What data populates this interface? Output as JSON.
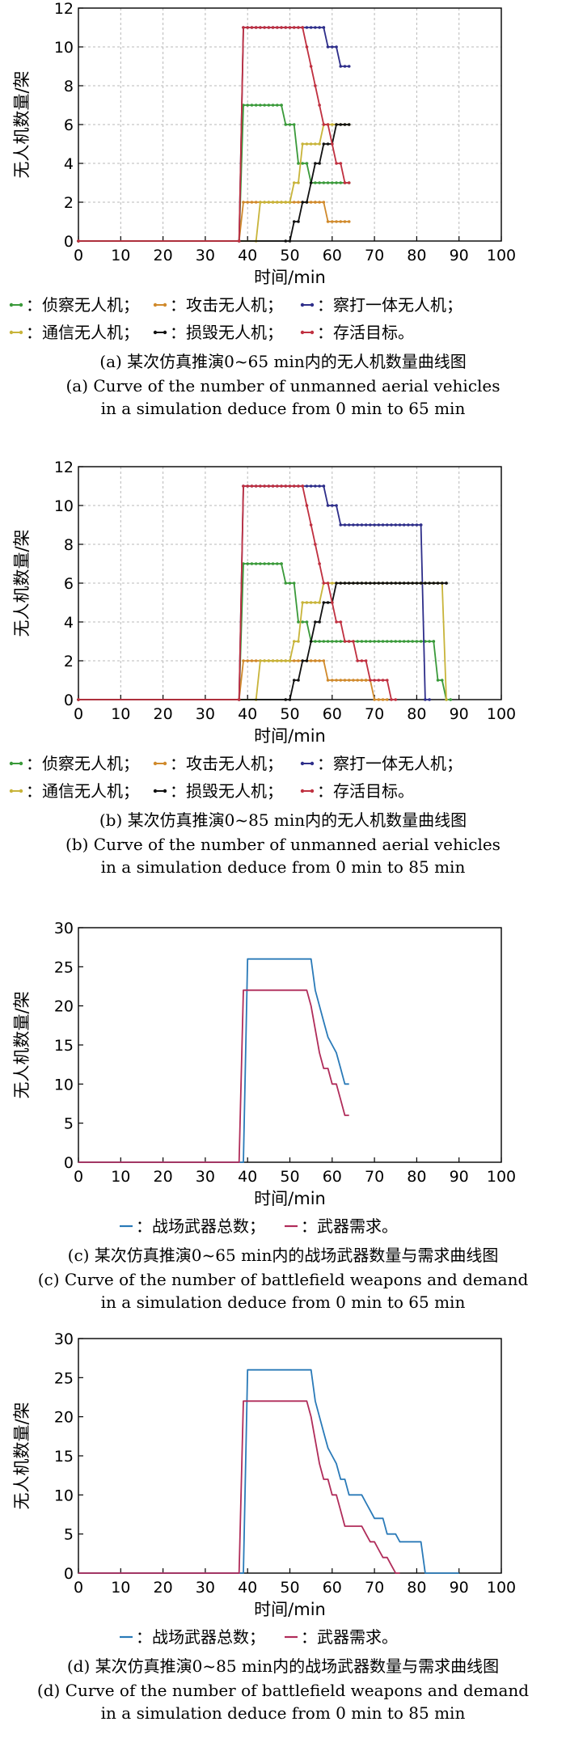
{
  "chart_data": [
    {
      "type": "line",
      "caption_zh": "(a) 某次仿真推演0~65 min内的无人机数量曲线图",
      "caption_en_1": "(a) Curve of the number of unmanned aerial vehicles",
      "caption_en_2": "in a simulation deduce from 0 min to 65 min",
      "xlabel": "时间/min",
      "ylabel": "无人机数量/架",
      "xlim": [
        0,
        100
      ],
      "ylim": [
        0,
        12
      ],
      "xticks": [
        "0",
        "10",
        "20",
        "30",
        "40",
        "50",
        "60",
        "70",
        "80",
        "90",
        "100"
      ],
      "yticks": [
        "0",
        "2",
        "4",
        "6",
        "8",
        "10",
        "12"
      ],
      "grid": true,
      "legend_position": "bottom",
      "legend": [
        "：侦察无人机；",
        "：攻击无人机；",
        "：察打一体无人机；",
        "：通信无人机；",
        "：损毁无人机；",
        "：存活目标。"
      ],
      "series": [
        {
          "color": "#3a9a3a",
          "x": [
            0,
            38,
            39,
            40,
            48,
            49,
            50,
            51,
            52,
            53,
            54,
            55,
            56,
            57,
            58,
            59,
            60,
            61,
            62,
            63,
            64
          ],
          "y": [
            0,
            0,
            7,
            7,
            7,
            6,
            6,
            6,
            4,
            4,
            4,
            3,
            3,
            3,
            3,
            3,
            3,
            3,
            3,
            3,
            3
          ]
        },
        {
          "color": "#d08a2c",
          "x": [
            0,
            38,
            39,
            40,
            56,
            57,
            58,
            59,
            60,
            61,
            62,
            63,
            64
          ],
          "y": [
            0,
            0,
            2,
            2,
            2,
            2,
            2,
            1,
            1,
            1,
            1,
            1,
            1
          ]
        },
        {
          "color": "#2e2e8a",
          "x": [
            0,
            38,
            39,
            40,
            58,
            59,
            60,
            61,
            62,
            63,
            64
          ],
          "y": [
            0,
            0,
            11,
            11,
            11,
            10,
            10,
            10,
            9,
            9,
            9
          ]
        },
        {
          "color": "#c8b43a",
          "x": [
            0,
            42,
            43,
            44,
            45,
            50,
            51,
            52,
            53,
            54,
            55,
            56,
            57,
            58,
            59,
            60,
            61,
            62,
            63,
            64
          ],
          "y": [
            0,
            0,
            2,
            2,
            2,
            2,
            3,
            3,
            5,
            5,
            5,
            5,
            5,
            6,
            6,
            6,
            6,
            6,
            6,
            6
          ]
        },
        {
          "color": "#111111",
          "x": [
            0,
            49,
            50,
            51,
            52,
            53,
            54,
            55,
            56,
            57,
            58,
            59,
            60,
            61,
            62,
            63,
            64
          ],
          "y": [
            0,
            0,
            0,
            1,
            1,
            2,
            2,
            3,
            4,
            4,
            5,
            5,
            5,
            6,
            6,
            6,
            6
          ]
        },
        {
          "color": "#c03040",
          "x": [
            0,
            38,
            39,
            40,
            53,
            54,
            55,
            56,
            57,
            58,
            59,
            60,
            61,
            62,
            63,
            64
          ],
          "y": [
            0,
            0,
            11,
            11,
            11,
            10,
            9,
            8,
            7,
            6,
            6,
            5,
            4,
            4,
            3,
            3
          ]
        }
      ]
    },
    {
      "type": "line",
      "caption_zh": "(b) 某次仿真推演0~85 min内的无人机数量曲线图",
      "caption_en_1": "(b) Curve of the number of unmanned aerial vehicles",
      "caption_en_2": "in a simulation deduce from 0 min to 85 min",
      "xlabel": "时间/min",
      "ylabel": "无人机数量/架",
      "xlim": [
        0,
        100
      ],
      "ylim": [
        0,
        12
      ],
      "xticks": [
        "0",
        "10",
        "20",
        "30",
        "40",
        "50",
        "60",
        "70",
        "80",
        "90",
        "100"
      ],
      "yticks": [
        "0",
        "2",
        "4",
        "6",
        "8",
        "10",
        "12"
      ],
      "grid": true,
      "legend_position": "bottom",
      "legend": [
        "：侦察无人机；",
        "：攻击无人机；",
        "：察打一体无人机；",
        "：通信无人机；",
        "：损毁无人机；",
        "：存活目标。"
      ],
      "series": [
        {
          "color": "#3a9a3a",
          "x": [
            0,
            38,
            39,
            40,
            48,
            49,
            50,
            51,
            52,
            53,
            54,
            55,
            56,
            57,
            58,
            84,
            85,
            86,
            87,
            88
          ],
          "y": [
            0,
            0,
            7,
            7,
            7,
            6,
            6,
            6,
            4,
            4,
            4,
            3,
            3,
            3,
            3,
            3,
            1,
            1,
            0,
            0
          ]
        },
        {
          "color": "#d08a2c",
          "x": [
            0,
            38,
            39,
            40,
            56,
            57,
            58,
            59,
            60,
            68,
            69,
            70,
            71,
            72,
            73
          ],
          "y": [
            0,
            0,
            2,
            2,
            2,
            2,
            2,
            1,
            1,
            1,
            1,
            0,
            0,
            0,
            0
          ]
        },
        {
          "color": "#2e2e8a",
          "x": [
            0,
            38,
            39,
            40,
            58,
            59,
            60,
            61,
            62,
            63,
            81,
            82,
            83
          ],
          "y": [
            0,
            0,
            11,
            11,
            11,
            10,
            10,
            10,
            9,
            9,
            9,
            0,
            0
          ]
        },
        {
          "color": "#c8b43a",
          "x": [
            0,
            42,
            43,
            44,
            45,
            50,
            51,
            52,
            53,
            54,
            55,
            56,
            57,
            58,
            59,
            60,
            61,
            86,
            87
          ],
          "y": [
            0,
            0,
            2,
            2,
            2,
            2,
            3,
            3,
            5,
            5,
            5,
            5,
            5,
            6,
            6,
            6,
            6,
            6,
            0
          ]
        },
        {
          "color": "#111111",
          "x": [
            0,
            49,
            50,
            51,
            52,
            53,
            54,
            55,
            56,
            57,
            58,
            59,
            60,
            61,
            87
          ],
          "y": [
            0,
            0,
            0,
            1,
            1,
            2,
            2,
            3,
            4,
            4,
            5,
            5,
            5,
            6,
            6
          ]
        },
        {
          "color": "#c03040",
          "x": [
            0,
            38,
            39,
            40,
            53,
            54,
            55,
            56,
            57,
            58,
            59,
            60,
            61,
            62,
            63,
            64,
            65,
            66,
            67,
            68,
            69,
            70,
            71,
            72,
            73,
            74,
            75
          ],
          "y": [
            0,
            0,
            11,
            11,
            11,
            10,
            9,
            8,
            7,
            6,
            6,
            5,
            4,
            4,
            3,
            3,
            3,
            2,
            2,
            2,
            1,
            1,
            1,
            1,
            1,
            0,
            0
          ]
        }
      ]
    },
    {
      "type": "line",
      "caption_zh": "(c) 某次仿真推演0~65 min内的战场武器数量与需求曲线图",
      "caption_en_1": "(c) Curve of the number of battlefield weapons and demand",
      "caption_en_2": "in a simulation deduce from 0 min to 65 min",
      "xlabel": "时间/min",
      "ylabel": "无人机数量/架",
      "xlim": [
        0,
        100
      ],
      "ylim": [
        0,
        30
      ],
      "xticks": [
        "0",
        "10",
        "20",
        "30",
        "40",
        "50",
        "60",
        "70",
        "80",
        "90",
        "100"
      ],
      "yticks": [
        "0",
        "5",
        "10",
        "15",
        "20",
        "25",
        "30"
      ],
      "grid": false,
      "legend_position": "bottom",
      "legend": [
        "：战场武器总数；",
        "：武器需求。"
      ],
      "series": [
        {
          "color": "#2a7ab8",
          "x": [
            0,
            39,
            40,
            55,
            56,
            57,
            58,
            59,
            60,
            61,
            62,
            63,
            64
          ],
          "y": [
            0,
            0,
            26,
            26,
            22,
            20,
            18,
            16,
            15,
            14,
            12,
            10,
            10
          ]
        },
        {
          "color": "#b02c5a",
          "x": [
            0,
            38,
            39,
            54,
            55,
            56,
            57,
            58,
            59,
            60,
            61,
            62,
            63,
            64
          ],
          "y": [
            0,
            0,
            22,
            22,
            20,
            17,
            14,
            12,
            12,
            10,
            10,
            8,
            6,
            6
          ]
        }
      ]
    },
    {
      "type": "line",
      "caption_zh": "(d) 某次仿真推演0~85 min内的战场武器数量与需求曲线图",
      "caption_en_1": "(d) Curve of the number of battlefield weapons and demand",
      "caption_en_2": "in a simulation deduce from 0 min to 85 min",
      "xlabel": "时间/min",
      "ylabel": "无人机数量/架",
      "xlim": [
        0,
        100
      ],
      "ylim": [
        0,
        30
      ],
      "xticks": [
        "0",
        "10",
        "20",
        "30",
        "40",
        "50",
        "60",
        "70",
        "80",
        "90",
        "100"
      ],
      "yticks": [
        "0",
        "5",
        "10",
        "15",
        "20",
        "25",
        "30"
      ],
      "grid": false,
      "legend_position": "bottom",
      "legend": [
        "：战场武器总数；",
        "：武器需求。"
      ],
      "series": [
        {
          "color": "#2a7ab8",
          "x": [
            0,
            39,
            40,
            55,
            56,
            57,
            58,
            59,
            60,
            61,
            62,
            63,
            64,
            65,
            66,
            67,
            68,
            69,
            70,
            72,
            73,
            75,
            76,
            81,
            82,
            83,
            90
          ],
          "y": [
            0,
            0,
            26,
            26,
            22,
            20,
            18,
            16,
            15,
            14,
            12,
            12,
            10,
            10,
            10,
            10,
            9,
            8,
            7,
            7,
            5,
            5,
            4,
            4,
            0,
            0,
            0
          ]
        },
        {
          "color": "#b02c5a",
          "x": [
            0,
            38,
            39,
            54,
            55,
            56,
            57,
            58,
            59,
            60,
            61,
            62,
            63,
            64,
            65,
            67,
            68,
            69,
            70,
            71,
            72,
            73,
            74,
            75,
            76
          ],
          "y": [
            0,
            0,
            22,
            22,
            20,
            17,
            14,
            12,
            12,
            10,
            10,
            8,
            6,
            6,
            6,
            6,
            5,
            4,
            4,
            3,
            2,
            2,
            1,
            0,
            0
          ]
        }
      ]
    }
  ]
}
